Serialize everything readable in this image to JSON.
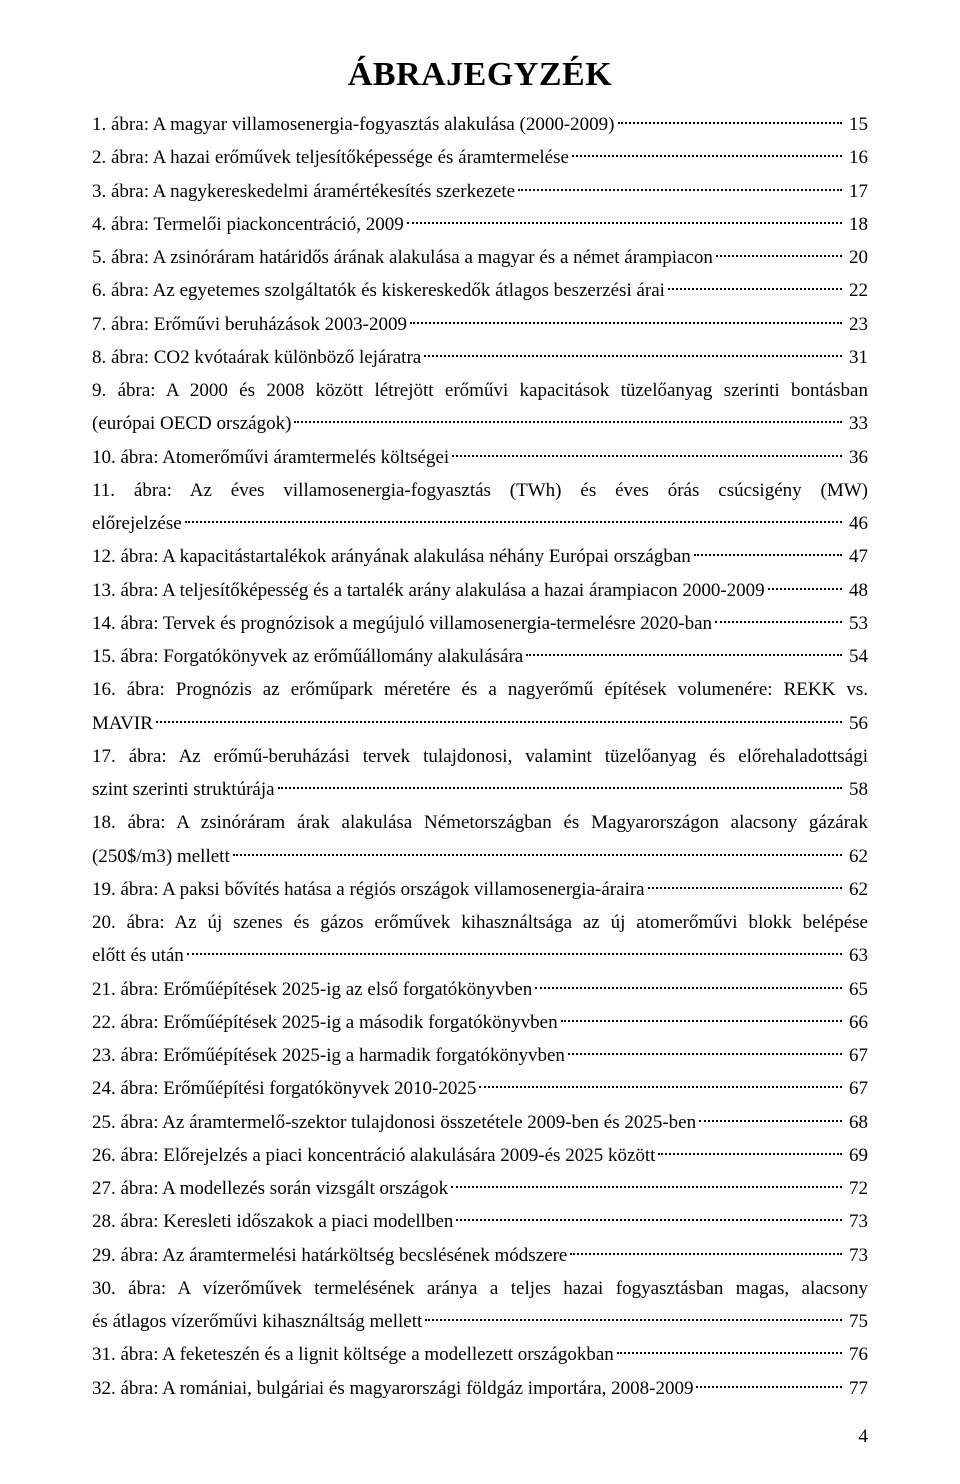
{
  "title": "ÁBRAJEGYZÉK",
  "page_number": "4",
  "entries": [
    {
      "lines": [
        "1. ábra: A magyar villamosenergia-fogyasztás alakulása (2000-2009)"
      ],
      "page": "15"
    },
    {
      "lines": [
        "2. ábra: A hazai erőművek teljesítőképessége és áramtermelése"
      ],
      "page": "16"
    },
    {
      "lines": [
        "3. ábra: A nagykereskedelmi áramértékesítés szerkezete"
      ],
      "page": "17"
    },
    {
      "lines": [
        "4. ábra: Termelői piackoncentráció, 2009"
      ],
      "page": "18"
    },
    {
      "lines": [
        "5. ábra: A zsinóráram határidős árának alakulása a magyar és a német árampiacon"
      ],
      "page": "20"
    },
    {
      "lines": [
        "6. ábra: Az egyetemes szolgáltatók és kiskereskedők átlagos beszerzési árai"
      ],
      "page": "22"
    },
    {
      "lines": [
        "7. ábra: Erőművi beruházások 2003-2009"
      ],
      "page": "23"
    },
    {
      "lines": [
        "8. ábra: CO2 kvótaárak különböző lejáratra"
      ],
      "page": "31"
    },
    {
      "lines": [
        "9. ábra: A 2000 és 2008 között létrejött erőművi kapacitások tüzelőanyag szerinti bontásban",
        "(európai OECD országok)"
      ],
      "page": "33"
    },
    {
      "lines": [
        "10. ábra: Atomerőművi áramtermelés költségei"
      ],
      "page": "36"
    },
    {
      "lines": [
        "11. ábra: Az éves villamosenergia-fogyasztás (TWh) és éves órás csúcsigény (MW)",
        "előrejelzése"
      ],
      "page": "46"
    },
    {
      "lines": [
        "12. ábra: A kapacitástartalékok arányának alakulása néhány Európai országban"
      ],
      "page": "47"
    },
    {
      "lines": [
        "13. ábra: A teljesítőképesség és a tartalék arány alakulása a hazai árampiacon 2000-2009"
      ],
      "page": "48"
    },
    {
      "lines": [
        "14. ábra: Tervek és prognózisok a megújuló villamosenergia-termelésre 2020-ban"
      ],
      "page": "53"
    },
    {
      "lines": [
        "15. ábra: Forgatókönyvek az erőműállomány alakulására"
      ],
      "page": "54"
    },
    {
      "lines": [
        "16. ábra: Prognózis az erőműpark méretére és a nagyerőmű építések volumenére: REKK vs.",
        "MAVIR"
      ],
      "page": "56"
    },
    {
      "lines": [
        "17. ábra: Az erőmű-beruházási tervek tulajdonosi, valamint tüzelőanyag és előrehaladottsági",
        "szint szerinti struktúrája"
      ],
      "page": "58"
    },
    {
      "lines": [
        "18. ábra: A zsinóráram árak alakulása Németországban és Magyarországon alacsony gázárak",
        "(250$/m3) mellett"
      ],
      "page": "62"
    },
    {
      "lines": [
        "19. ábra: A paksi bővítés hatása a régiós országok villamosenergia-áraira"
      ],
      "page": "62"
    },
    {
      "lines": [
        "20. ábra: Az új szenes és gázos erőművek kihasználtsága az új atomerőművi blokk belépése",
        "előtt és után"
      ],
      "page": "63"
    },
    {
      "lines": [
        "21. ábra: Erőműépítések 2025-ig az első forgatókönyvben"
      ],
      "page": "65"
    },
    {
      "lines": [
        "22. ábra: Erőműépítések 2025-ig a második forgatókönyvben"
      ],
      "page": "66"
    },
    {
      "lines": [
        "23. ábra: Erőműépítések 2025-ig a harmadik forgatókönyvben"
      ],
      "page": "67"
    },
    {
      "lines": [
        "24. ábra: Erőműépítési forgatókönyvek 2010-2025"
      ],
      "page": "67"
    },
    {
      "lines": [
        "25. ábra: Az áramtermelő-szektor tulajdonosi összetétele 2009-ben és 2025-ben"
      ],
      "page": "68"
    },
    {
      "lines": [
        "26. ábra: Előrejelzés a piaci koncentráció alakulására 2009-és 2025 között"
      ],
      "page": "69"
    },
    {
      "lines": [
        "27. ábra: A modellezés során vizsgált országok"
      ],
      "page": "72"
    },
    {
      "lines": [
        "28. ábra: Keresleti időszakok a piaci modellben"
      ],
      "page": "73"
    },
    {
      "lines": [
        "29. ábra: Az áramtermelési határköltség becslésének módszere"
      ],
      "page": "73"
    },
    {
      "lines": [
        "30. ábra: A vízerőművek termelésének aránya a teljes hazai fogyasztásban  magas, alacsony",
        "és átlagos vízerőművi kihasználtság mellett"
      ],
      "page": "75"
    },
    {
      "lines": [
        "31. ábra: A feketeszén és a lignit költsége a modellezett országokban"
      ],
      "page": "76"
    },
    {
      "lines": [
        "32. ábra: A romániai, bulgáriai és magyarországi földgáz importára, 2008-2009"
      ],
      "page": "77"
    }
  ]
}
